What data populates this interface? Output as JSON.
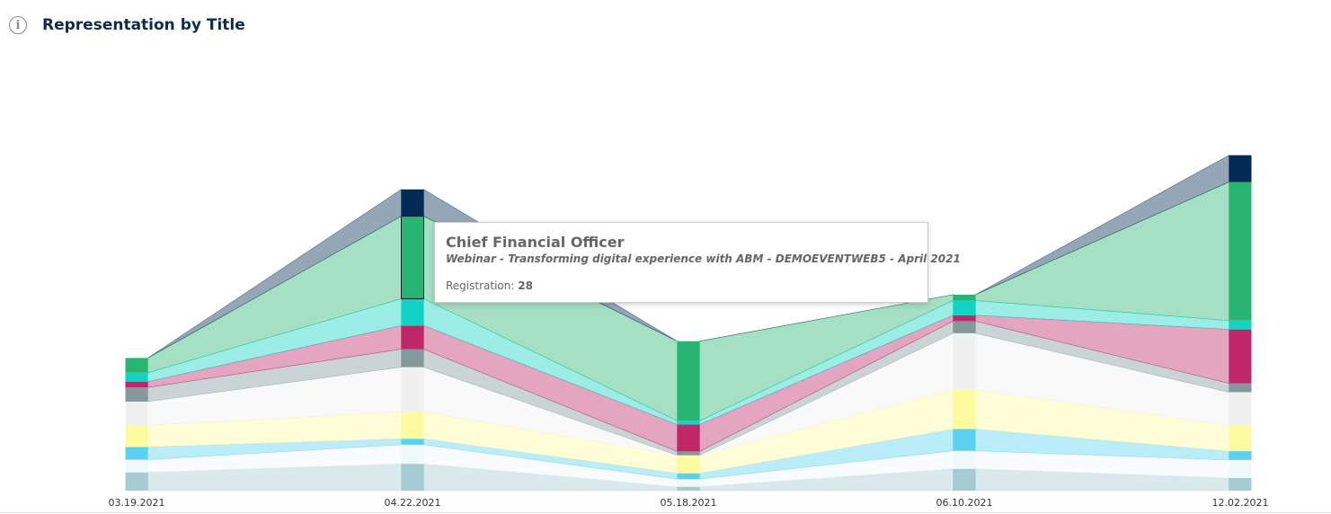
{
  "header": {
    "title": "Representation by Title",
    "icon": "info-icon"
  },
  "tooltip": {
    "title": "Chief Financial Officer",
    "subtitle": "Webinar - Transforming digital experience with ABM - DEMOEVENTWEB5 - April 2021",
    "metric_label": "Registration:",
    "metric_value": "28"
  },
  "chart_data": {
    "type": "area",
    "stacked": true,
    "style": "stacked parallel bars connected by ribbons",
    "categories": [
      "03.19.2021",
      "04.22.2021",
      "05.18.2021",
      "06.10.2021",
      "12.02.2021"
    ],
    "series": [
      {
        "color": "#a4cbd1",
        "values": [
          6.2,
          9.1,
          1.3,
          7.4,
          4.3
        ]
      },
      {
        "color": "#f0f8fc",
        "values": [
          4.3,
          6.5,
          2.6,
          6.1,
          6.1
        ]
      },
      {
        "color": "#5bd1f0",
        "values": [
          4.3,
          2.0,
          2.0,
          7.4,
          3.0
        ]
      },
      {
        "color": "#fdfba0",
        "values": [
          7.4,
          9.1,
          6.1,
          13.4,
          8.7
        ]
      },
      {
        "color": "#f0f0f0",
        "values": [
          8.0,
          15.2,
          0.0,
          19.1,
          11.3
        ]
      },
      {
        "color": "#84999b",
        "values": [
          4.8,
          6.1,
          1.3,
          4.1,
          3.0
        ]
      },
      {
        "color": "#be2868",
        "values": [
          2.0,
          8.0,
          9.1,
          2.0,
          18.3
        ]
      },
      {
        "color": "#11d4c4",
        "values": [
          3.0,
          9.1,
          1.3,
          5.0,
          3.0
        ]
      },
      {
        "color": "#28b473",
        "values": [
          5.0,
          28.0,
          27.0,
          2.0,
          47.0
        ]
      },
      {
        "color": "#022a54",
        "values": [
          0.0,
          9.1,
          0.0,
          0.0,
          9.1
        ]
      }
    ],
    "highlight": {
      "category_index": 1,
      "series_index": 8
    }
  }
}
